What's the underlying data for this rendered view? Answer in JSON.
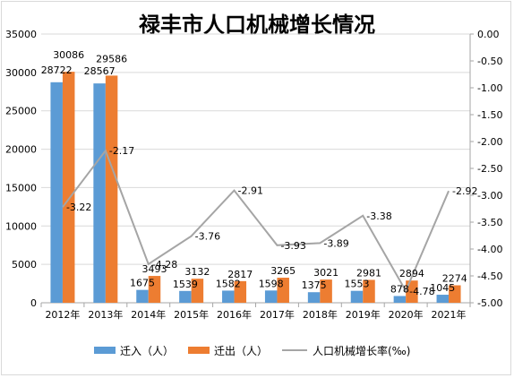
{
  "chart_data": {
    "type": "bar",
    "title": "禄丰市人口机械增长情况",
    "categories": [
      "2012年",
      "2013年",
      "2014年",
      "2015年",
      "2016年",
      "2017年",
      "2018年",
      "2019年",
      "2020年",
      "2021年"
    ],
    "series": [
      {
        "name": "迁入（人）",
        "type": "bar",
        "axis": "left",
        "color": "#5b9bd5",
        "values": [
          28722,
          28567,
          1675,
          1539,
          1582,
          1598,
          1375,
          1553,
          878,
          1045
        ]
      },
      {
        "name": "迁出（人）",
        "type": "bar",
        "axis": "left",
        "color": "#ed7d31",
        "values": [
          30086,
          29586,
          3493,
          3132,
          2817,
          3265,
          3021,
          2981,
          2894,
          2274
        ]
      },
      {
        "name": "人口机械增长率(‰)",
        "type": "line",
        "axis": "right",
        "color": "#a5a5a5",
        "values": [
          -3.22,
          -2.17,
          -4.28,
          -3.76,
          -2.91,
          -3.93,
          -3.89,
          -3.38,
          -4.78,
          -2.92
        ]
      }
    ],
    "y_left": {
      "min": 0,
      "max": 35000,
      "step": 5000,
      "ticks": [
        "0",
        "5000",
        "10000",
        "15000",
        "20000",
        "25000",
        "30000",
        "35000"
      ]
    },
    "y_right": {
      "min": -5.0,
      "max": 0.0,
      "step": 0.5,
      "ticks": [
        "0.00",
        "-0.50",
        "-1.00",
        "-1.50",
        "-2.00",
        "-2.50",
        "-3.00",
        "-3.50",
        "-4.00",
        "-4.50",
        "-5.00"
      ]
    },
    "legend": "bottom"
  }
}
